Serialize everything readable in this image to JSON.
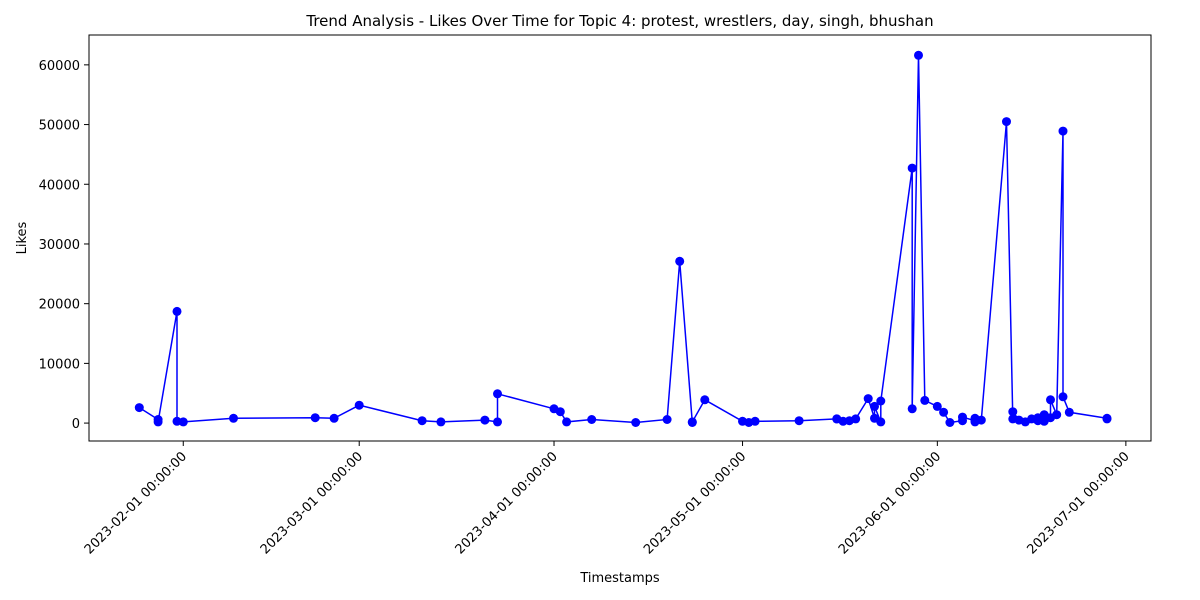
{
  "chart_data": {
    "type": "line",
    "title": "Trend Analysis - Likes Over Time for Topic 4: protest, wrestlers, day, singh, bhushan",
    "xlabel": "Timestamps",
    "ylabel": "Likes",
    "xlim": [
      "2023-01-17",
      "2023-07-05"
    ],
    "ylim": [
      -3000,
      65000
    ],
    "x_ticks": [
      "2023-02-01 00:00:00",
      "2023-03-01 00:00:00",
      "2023-04-01 00:00:00",
      "2023-05-01 00:00:00",
      "2023-06-01 00:00:00",
      "2023-07-01 00:00:00"
    ],
    "y_ticks": [
      0,
      10000,
      20000,
      30000,
      40000,
      50000,
      60000
    ],
    "grid": false,
    "color": "#0000ff",
    "series": [
      {
        "x": [
          "2023-01-25",
          "2023-01-28",
          "2023-01-28",
          "2023-01-31",
          "2023-01-31",
          "2023-02-01",
          "2023-02-09",
          "2023-02-22",
          "2023-02-25",
          "2023-03-01",
          "2023-03-11",
          "2023-03-14",
          "2023-03-21",
          "2023-03-23",
          "2023-03-23",
          "2023-04-01",
          "2023-04-02",
          "2023-04-03",
          "2023-04-07",
          "2023-04-14",
          "2023-04-19",
          "2023-04-21",
          "2023-04-23",
          "2023-04-23",
          "2023-04-25",
          "2023-05-01",
          "2023-05-02",
          "2023-05-03",
          "2023-05-10",
          "2023-05-16",
          "2023-05-16",
          "2023-05-17",
          "2023-05-18",
          "2023-05-19",
          "2023-05-21",
          "2023-05-22",
          "2023-05-22",
          "2023-05-23",
          "2023-05-23",
          "2023-05-28",
          "2023-05-28",
          "2023-05-29",
          "2023-05-30",
          "2023-06-01",
          "2023-06-02",
          "2023-06-03",
          "2023-06-05",
          "2023-06-05",
          "2023-06-07",
          "2023-06-07",
          "2023-06-07",
          "2023-06-08",
          "2023-06-12",
          "2023-06-13",
          "2023-06-13",
          "2023-06-14",
          "2023-06-15",
          "2023-06-16",
          "2023-06-17",
          "2023-06-17",
          "2023-06-18",
          "2023-06-18",
          "2023-06-19",
          "2023-06-19",
          "2023-06-20",
          "2023-06-21",
          "2023-06-21",
          "2023-06-22",
          "2023-06-28",
          "2023-06-28"
        ],
        "y": [
          2600,
          600,
          200,
          18700,
          300,
          200,
          800,
          900,
          800,
          3000,
          400,
          200,
          500,
          200,
          4900,
          2400,
          1900,
          200,
          600,
          100,
          600,
          27100,
          100,
          200,
          3900,
          300,
          100,
          300,
          400,
          700,
          700,
          300,
          400,
          700,
          4100,
          800,
          2800,
          200,
          3700,
          42700,
          2400,
          61600,
          3800,
          2800,
          1800,
          100,
          400,
          1000,
          400,
          200,
          800,
          500,
          50500,
          700,
          1900,
          500,
          200,
          700,
          900,
          400,
          1400,
          300,
          900,
          3900,
          1400,
          48900,
          4400,
          1800,
          800,
          700
        ]
      }
    ]
  }
}
